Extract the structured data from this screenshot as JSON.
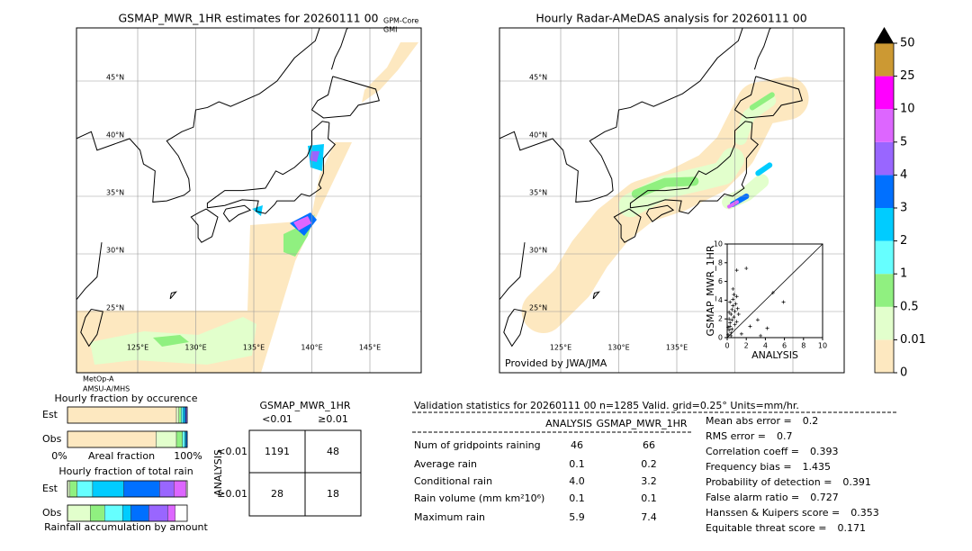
{
  "left_map": {
    "title": "GSMAP_MWR_1HR estimates for 20260111 00",
    "sensor_top": [
      "GPM-Core",
      "GMI"
    ],
    "sensor_bottom": [
      "MetOp-A",
      "AMSU-A/MHS"
    ],
    "lat_labels": [
      "45°N",
      "40°N",
      "35°N",
      "30°N",
      "25°N"
    ],
    "lon_labels": [
      "125°E",
      "130°E",
      "135°E",
      "140°E",
      "145°E"
    ]
  },
  "right_map": {
    "title": "Hourly Radar-AMeDAS analysis for 20260111 00",
    "credit": "Provided by JWA/JMA",
    "lat_labels": [
      "45°N",
      "40°N",
      "35°N",
      "30°N",
      "25°N"
    ],
    "lon_labels": [
      "125°E",
      "130°E",
      "135°E"
    ]
  },
  "colorbar": {
    "labels": [
      "0",
      "0.01",
      "0.5",
      "1",
      "2",
      "3",
      "4",
      "5",
      "10",
      "25",
      "50"
    ],
    "colors": [
      "#fde8c0",
      "#e2ffcc",
      "#90f080",
      "#66ffff",
      "#00ccff",
      "#0070ff",
      "#9966ff",
      "#dd66ff",
      "#ff00ff",
      "#cc9933"
    ]
  },
  "scatter": {
    "xlabel": "ANALYSIS",
    "ylabel": "GSMAP_MWR_1HR",
    "xlim": [
      0,
      10
    ],
    "ylim": [
      0,
      10
    ],
    "xticks": [
      0,
      2,
      4,
      6,
      8,
      10
    ],
    "yticks": [
      0,
      2,
      4,
      6,
      8,
      10
    ],
    "x": [
      0.1,
      0.2,
      0.3,
      0.2,
      0.4,
      0.5,
      0.6,
      0.3,
      0.5,
      0.7,
      0.8,
      0.4,
      0.6,
      0.9,
      1.0,
      0.2,
      0.5,
      0.8,
      1.1,
      0.3,
      0.7,
      1.2,
      0.1,
      0.4,
      1.0,
      2.0,
      1.0,
      4.8,
      5.9,
      3.2,
      3.5,
      4.2,
      2.4,
      1.5,
      0.6
    ],
    "y": [
      0.3,
      0.8,
      1.2,
      2.0,
      2.5,
      3.0,
      3.4,
      1.6,
      1.9,
      2.2,
      2.8,
      0.5,
      4.1,
      3.6,
      4.4,
      2.7,
      0.9,
      1.4,
      3.1,
      3.8,
      4.6,
      2.5,
      1.1,
      0.2,
      1.7,
      7.4,
      7.2,
      4.8,
      3.8,
      1.9,
      0.2,
      1.0,
      1.2,
      0.4,
      5.2
    ]
  },
  "fraction_occurrence": {
    "title": "Hourly fraction by occurence",
    "rows": [
      "Est",
      "Obs"
    ],
    "axis_left": "0%",
    "axis_mid": "Areal fraction",
    "axis_right": "100%",
    "Est": [
      91,
      2,
      2,
      1.5,
      1.5,
      1,
      1
    ],
    "Obs": [
      74,
      17,
      5,
      2,
      1,
      1,
      0
    ]
  },
  "fraction_rain": {
    "title": "Hourly fraction of total rain",
    "rows": [
      "Est",
      "Obs"
    ],
    "caption": "Rainfall accumulation by amount",
    "Est": [
      0,
      2,
      6,
      13,
      26,
      30,
      12,
      10
    ],
    "Obs": [
      0,
      19,
      12,
      15,
      7,
      15,
      16,
      6
    ]
  },
  "contingency": {
    "title": "GSMAP_MWR_1HR",
    "cols": [
      "<0.01",
      "≥0.01"
    ],
    "row_axis": "ANALYSIS",
    "rows": [
      "<0.01",
      "≥0.01"
    ],
    "cells": [
      [
        1191,
        48
      ],
      [
        28,
        18
      ]
    ]
  },
  "validation": {
    "header": "Validation statistics for 20260111 00  n=1285 Valid. grid=0.25° Units=mm/hr.",
    "columns": [
      "ANALYSIS",
      "GSMAP_MWR_1HR"
    ],
    "rows": [
      [
        "Num of gridpoints raining",
        "46",
        "66"
      ],
      [
        "Average rain",
        "0.1",
        "0.2"
      ],
      [
        "Conditional rain",
        "4.0",
        "3.2"
      ],
      [
        "Rain volume (mm km²10⁶)",
        "0.1",
        "0.1"
      ],
      [
        "Maximum rain",
        "5.9",
        "7.4"
      ]
    ],
    "scores": [
      [
        "Mean abs error =",
        "0.2"
      ],
      [
        "RMS error =",
        "0.7"
      ],
      [
        "Correlation coeff =",
        "0.393"
      ],
      [
        "Frequency bias =",
        "1.435"
      ],
      [
        "Probability of detection =",
        "0.391"
      ],
      [
        "False alarm ratio =",
        "0.727"
      ],
      [
        "Hanssen & Kuipers score =",
        "0.353"
      ],
      [
        "Equitable threat score =",
        "0.171"
      ]
    ]
  }
}
